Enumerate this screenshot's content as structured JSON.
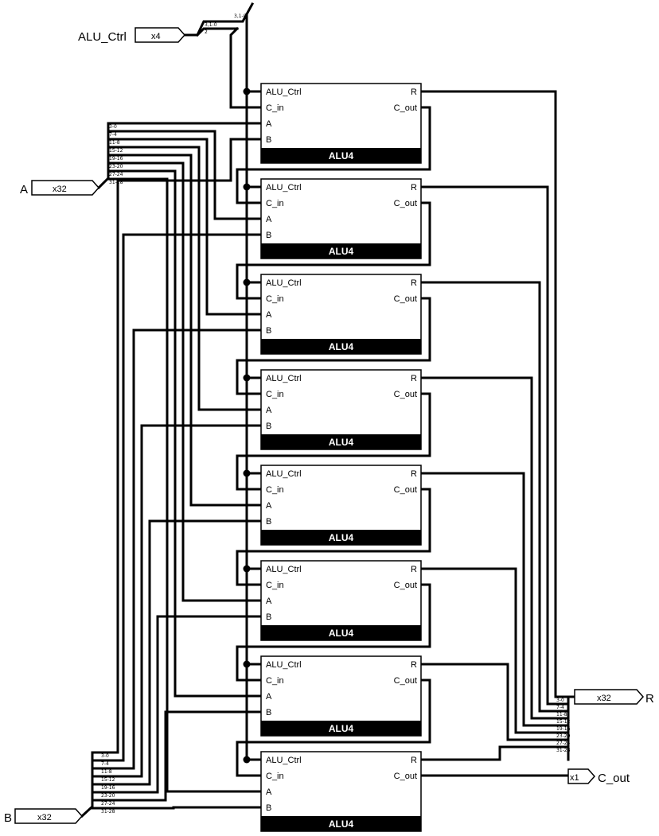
{
  "inputs": {
    "alu_ctrl": {
      "name": "ALU_Ctrl",
      "width": "x4"
    },
    "a": {
      "name": "A",
      "width": "x32"
    },
    "b": {
      "name": "B",
      "width": "x32"
    }
  },
  "outputs": {
    "r": {
      "name": "R",
      "width": "x32"
    },
    "c_out": {
      "name": "C_out",
      "width": "x1"
    }
  },
  "ctrl_split": {
    "bits_top": "3,1-0",
    "bits_mid": "3,1-0",
    "bits_low": "2"
  },
  "bit_ranges": [
    "3-0",
    "7-4",
    "11-8",
    "15-12",
    "19-16",
    "23-20",
    "27-24",
    "31-28"
  ],
  "blocks": [
    {
      "title": "ALU4",
      "ports": {
        "alu_ctrl": "ALU_Ctrl",
        "c_in": "C_in",
        "a": "A",
        "b": "B",
        "r": "R",
        "c_out": "C_out"
      }
    },
    {
      "title": "ALU4",
      "ports": {
        "alu_ctrl": "ALU_Ctrl",
        "c_in": "C_in",
        "a": "A",
        "b": "B",
        "r": "R",
        "c_out": "C_out"
      }
    },
    {
      "title": "ALU4",
      "ports": {
        "alu_ctrl": "ALU_Ctrl",
        "c_in": "C_in",
        "a": "A",
        "b": "B",
        "r": "R",
        "c_out": "C_out"
      }
    },
    {
      "title": "ALU4",
      "ports": {
        "alu_ctrl": "ALU_Ctrl",
        "c_in": "C_in",
        "a": "A",
        "b": "B",
        "r": "R",
        "c_out": "C_out"
      }
    },
    {
      "title": "ALU4",
      "ports": {
        "alu_ctrl": "ALU_Ctrl",
        "c_in": "C_in",
        "a": "A",
        "b": "B",
        "r": "R",
        "c_out": "C_out"
      }
    },
    {
      "title": "ALU4",
      "ports": {
        "alu_ctrl": "ALU_Ctrl",
        "c_in": "C_in",
        "a": "A",
        "b": "B",
        "r": "R",
        "c_out": "C_out"
      }
    },
    {
      "title": "ALU4",
      "ports": {
        "alu_ctrl": "ALU_Ctrl",
        "c_in": "C_in",
        "a": "A",
        "b": "B",
        "r": "R",
        "c_out": "C_out"
      }
    },
    {
      "title": "ALU4",
      "ports": {
        "alu_ctrl": "ALU_Ctrl",
        "c_in": "C_in",
        "a": "A",
        "b": "B",
        "r": "R",
        "c_out": "C_out"
      }
    }
  ]
}
